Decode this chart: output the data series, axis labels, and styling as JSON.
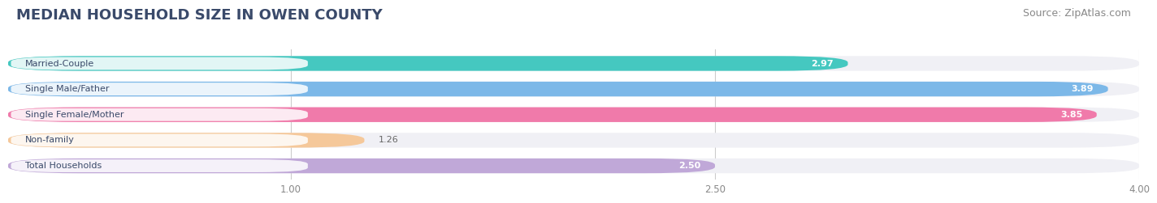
{
  "title": "MEDIAN HOUSEHOLD SIZE IN OWEN COUNTY",
  "source": "Source: ZipAtlas.com",
  "categories": [
    "Married-Couple",
    "Single Male/Father",
    "Single Female/Mother",
    "Non-family",
    "Total Households"
  ],
  "values": [
    2.97,
    3.89,
    3.85,
    1.26,
    2.5
  ],
  "bar_colors": [
    "#45c8c0",
    "#7cb8e8",
    "#f07aaa",
    "#f5c89a",
    "#c0a8d8"
  ],
  "xlim_data": [
    0.0,
    4.0
  ],
  "xticks": [
    1.0,
    2.5,
    4.0
  ],
  "xtick_labels": [
    "1.00",
    "2.50",
    "4.00"
  ],
  "background_color": "#ffffff",
  "bar_bg_color": "#f0f0f5",
  "title_color": "#3a4a6a",
  "title_fontsize": 13,
  "source_fontsize": 9,
  "label_fontsize": 8,
  "value_fontsize": 8,
  "bar_height": 0.58,
  "bar_gap": 0.15
}
